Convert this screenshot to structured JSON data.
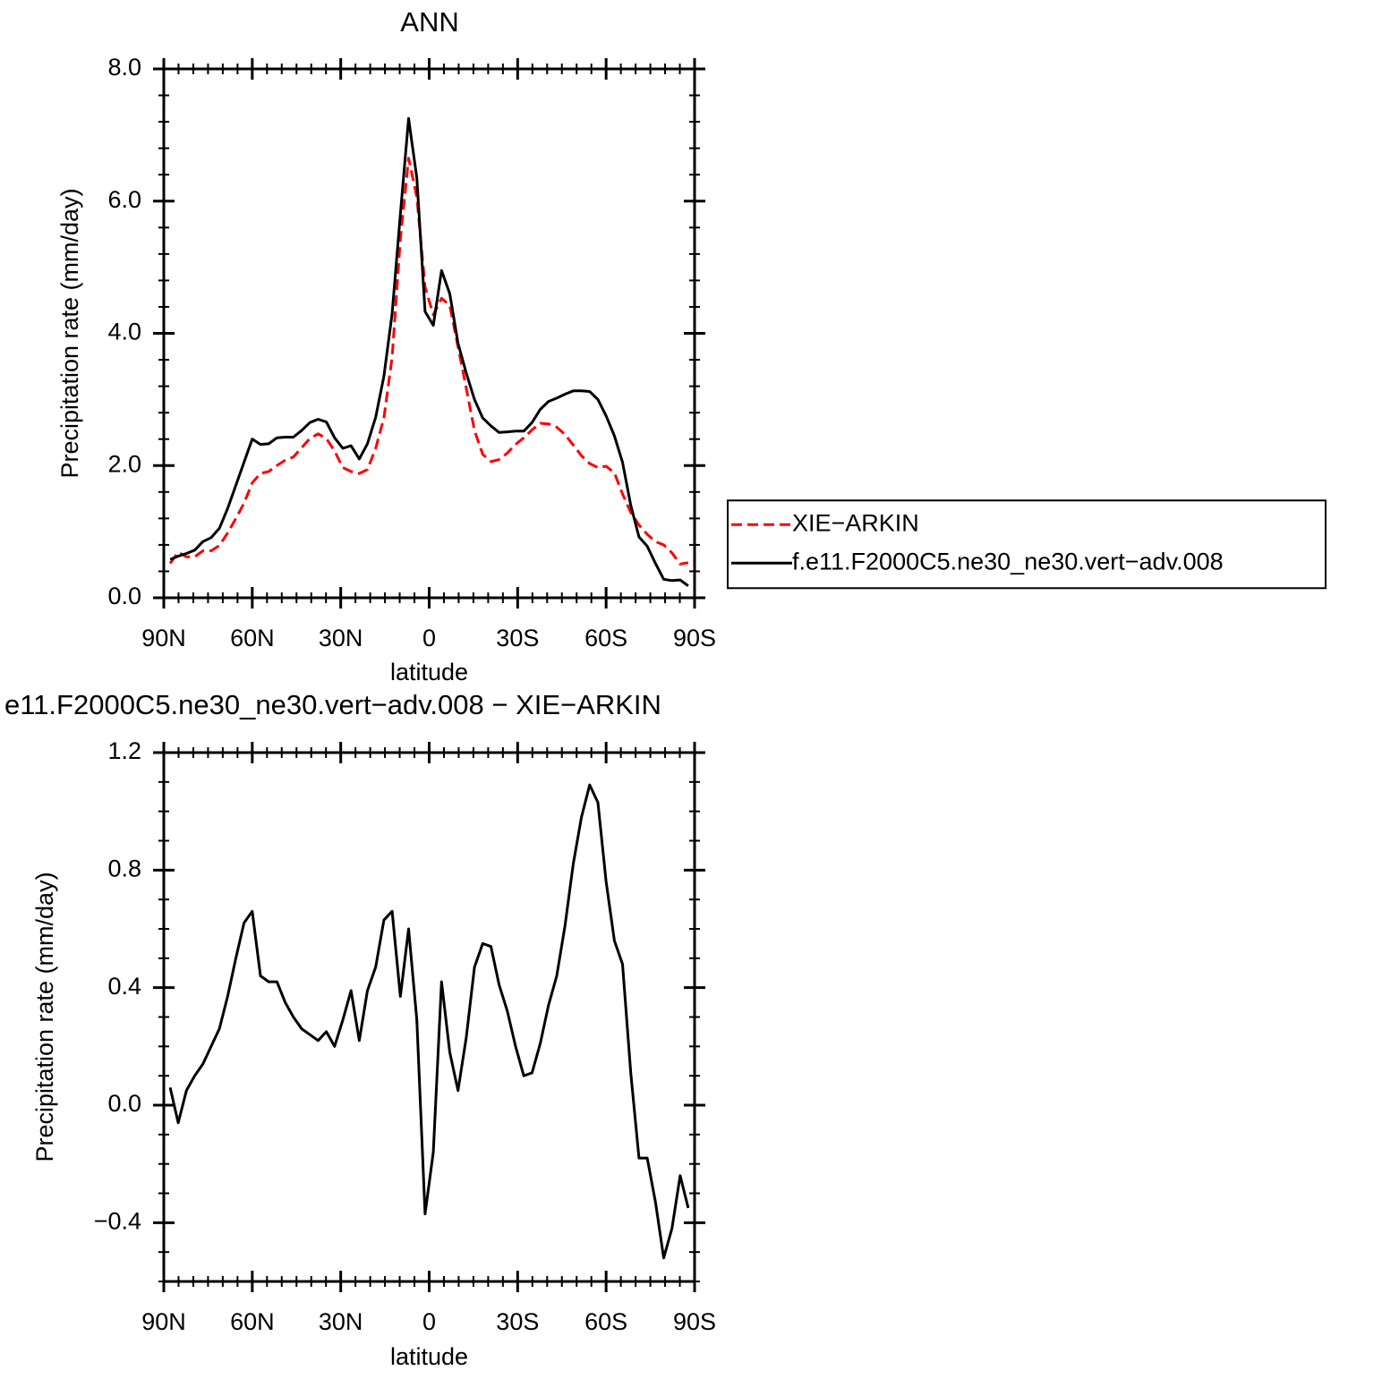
{
  "chart_data": [
    {
      "type": "line",
      "title": "ANN",
      "xlabel": "latitude",
      "ylabel": "Precipitation rate (mm/day)",
      "x": [
        87.86,
        85.1,
        82.31,
        79.53,
        76.74,
        73.95,
        71.16,
        68.37,
        65.58,
        62.79,
        60.0,
        57.21,
        54.42,
        51.63,
        48.84,
        46.04,
        43.25,
        40.46,
        37.67,
        34.88,
        32.09,
        29.3,
        26.51,
        23.72,
        20.93,
        18.14,
        15.35,
        12.56,
        9.77,
        6.98,
        4.19,
        1.4,
        -1.4,
        -4.19,
        -6.98,
        -9.77,
        -12.56,
        -15.35,
        -18.14,
        -20.93,
        -23.72,
        -26.51,
        -29.3,
        -32.09,
        -34.88,
        -37.67,
        -40.46,
        -43.25,
        -46.04,
        -48.84,
        -51.63,
        -54.42,
        -57.21,
        -60.0,
        -62.79,
        -65.58,
        -68.37,
        -71.16,
        -73.95,
        -76.74,
        -79.53,
        -82.31,
        -85.1,
        -87.86
      ],
      "series": [
        {
          "name": "XIE−ARKIN",
          "color": "#ff0000",
          "linestyle": "dashed",
          "values": [
            0.52,
            0.69,
            0.62,
            0.62,
            0.71,
            0.71,
            0.79,
            0.98,
            1.2,
            1.43,
            1.74,
            1.88,
            1.91,
            2.0,
            2.08,
            2.13,
            2.27,
            2.41,
            2.48,
            2.41,
            2.22,
            1.97,
            1.91,
            1.88,
            1.94,
            2.26,
            2.72,
            3.64,
            5.43,
            6.65,
            6.06,
            4.7,
            4.28,
            4.53,
            4.42,
            3.8,
            3.17,
            2.53,
            2.17,
            2.06,
            2.09,
            2.19,
            2.32,
            2.42,
            2.54,
            2.64,
            2.63,
            2.58,
            2.47,
            2.31,
            2.15,
            2.03,
            1.97,
            1.99,
            1.89,
            1.57,
            1.29,
            1.1,
            0.96,
            0.85,
            0.8,
            0.68,
            0.51,
            0.53
          ]
        },
        {
          "name": "f.e11.F2000C5.ne30_ne30.vert−adv.008",
          "color": "#000000",
          "linestyle": "solid",
          "values": [
            0.58,
            0.63,
            0.67,
            0.72,
            0.85,
            0.91,
            1.05,
            1.35,
            1.7,
            2.05,
            2.4,
            2.32,
            2.33,
            2.42,
            2.43,
            2.43,
            2.53,
            2.65,
            2.7,
            2.66,
            2.42,
            2.26,
            2.3,
            2.1,
            2.33,
            2.73,
            3.35,
            4.3,
            5.8,
            7.25,
            6.35,
            4.33,
            4.12,
            4.95,
            4.6,
            3.85,
            3.4,
            3.0,
            2.72,
            2.6,
            2.5,
            2.51,
            2.52,
            2.52,
            2.65,
            2.85,
            2.97,
            3.02,
            3.08,
            3.13,
            3.13,
            3.12,
            3.0,
            2.75,
            2.45,
            2.05,
            1.4,
            0.92,
            0.78,
            0.52,
            0.28,
            0.26,
            0.27,
            0.18
          ]
        }
      ],
      "xlim": [
        90,
        -90
      ],
      "xticks": [
        {
          "value": 90,
          "label": "90N"
        },
        {
          "value": 60,
          "label": "60N"
        },
        {
          "value": 30,
          "label": "30N"
        },
        0,
        {
          "value": -30,
          "label": "30S"
        },
        {
          "value": -60,
          "label": "60S"
        },
        {
          "value": -90,
          "label": "90S"
        }
      ],
      "ylim": [
        0,
        8
      ],
      "yticks": [
        {
          "value": 0,
          "label": "0.0"
        },
        {
          "value": 2,
          "label": "2.0"
        },
        {
          "value": 4,
          "label": "4.0"
        },
        {
          "value": 6,
          "label": "6.0"
        },
        {
          "value": 8,
          "label": "8.0"
        }
      ],
      "legend": "right"
    },
    {
      "type": "line",
      "title": "e11.F2000C5.ne30_ne30.vert−adv.008 − XIE−ARKIN",
      "xlabel": "latitude",
      "ylabel": "Precipitation rate (mm/day)",
      "x": [
        87.86,
        85.1,
        82.31,
        79.53,
        76.74,
        73.95,
        71.16,
        68.37,
        65.58,
        62.79,
        60.0,
        57.21,
        54.42,
        51.63,
        48.84,
        46.04,
        43.25,
        40.46,
        37.67,
        34.88,
        32.09,
        29.3,
        26.51,
        23.72,
        20.93,
        18.14,
        15.35,
        12.56,
        9.77,
        6.98,
        4.19,
        1.4,
        -1.4,
        -4.19,
        -6.98,
        -9.77,
        -12.56,
        -15.35,
        -18.14,
        -20.93,
        -23.72,
        -26.51,
        -29.3,
        -32.09,
        -34.88,
        -37.67,
        -40.46,
        -43.25,
        -46.04,
        -48.84,
        -51.63,
        -54.42,
        -57.21,
        -60.0,
        -62.79,
        -65.58,
        -68.37,
        -71.16,
        -73.95,
        -76.74,
        -79.53,
        -82.31,
        -85.1,
        -87.86
      ],
      "values": [
        0.06,
        -0.06,
        0.05,
        0.1,
        0.14,
        0.2,
        0.26,
        0.37,
        0.5,
        0.62,
        0.66,
        0.44,
        0.42,
        0.42,
        0.35,
        0.3,
        0.26,
        0.24,
        0.22,
        0.25,
        0.2,
        0.29,
        0.39,
        0.22,
        0.39,
        0.47,
        0.63,
        0.66,
        0.37,
        0.6,
        0.29,
        -0.37,
        -0.16,
        0.42,
        0.18,
        0.05,
        0.23,
        0.47,
        0.55,
        0.54,
        0.41,
        0.32,
        0.2,
        0.1,
        0.11,
        0.21,
        0.34,
        0.44,
        0.61,
        0.82,
        0.98,
        1.09,
        1.03,
        0.76,
        0.56,
        0.48,
        0.11,
        -0.18,
        -0.18,
        -0.33,
        -0.52,
        -0.42,
        -0.24,
        -0.35
      ],
      "color": "#000000",
      "xlim": [
        90,
        -90
      ],
      "xticks": [
        {
          "value": 90,
          "label": "90N"
        },
        {
          "value": 60,
          "label": "60N"
        },
        {
          "value": 30,
          "label": "30N"
        },
        0,
        {
          "value": -30,
          "label": "30S"
        },
        {
          "value": -60,
          "label": "60S"
        },
        {
          "value": -90,
          "label": "90S"
        }
      ],
      "ylim": [
        -0.6,
        1.2
      ],
      "yticks": [
        {
          "value": -0.4,
          "label": "−0.4"
        },
        {
          "value": 0,
          "label": "0.0"
        },
        0.4,
        0.8,
        1.2
      ]
    }
  ]
}
